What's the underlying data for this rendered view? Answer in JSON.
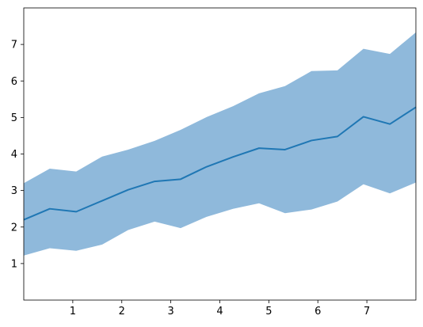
{
  "chart_data": {
    "type": "area",
    "title": "",
    "xlabel": "",
    "ylabel": "",
    "xlim": [
      0,
      8
    ],
    "ylim": [
      0,
      8
    ],
    "grid": false,
    "x_ticks": [
      "1",
      "2",
      "3",
      "4",
      "5",
      "6",
      "7"
    ],
    "y_ticks": [
      "1",
      "2",
      "3",
      "4",
      "5",
      "6",
      "7"
    ],
    "x": [
      0,
      0.53,
      1.07,
      1.6,
      2.13,
      2.67,
      3.2,
      3.73,
      4.27,
      4.8,
      5.33,
      5.87,
      6.4,
      6.93,
      7.47,
      8.0
    ],
    "series": [
      {
        "values": [
          2.2,
          2.5,
          2.42,
          2.72,
          3.02,
          3.25,
          3.31,
          3.65,
          3.92,
          4.16,
          4.12,
          4.37,
          4.48,
          5.02,
          4.82,
          5.28
        ],
        "lower": [
          1.22,
          1.42,
          1.35,
          1.52,
          1.92,
          2.15,
          1.97,
          2.28,
          2.5,
          2.65,
          2.38,
          2.48,
          2.7,
          3.17,
          2.92,
          3.22
        ],
        "upper": [
          3.2,
          3.6,
          3.52,
          3.93,
          4.12,
          4.36,
          4.66,
          5.01,
          5.31,
          5.66,
          5.86,
          6.27,
          6.29,
          6.88,
          6.74,
          7.33
        ],
        "color": "#1f77b4",
        "fill_color": "#8fb9db"
      }
    ]
  }
}
